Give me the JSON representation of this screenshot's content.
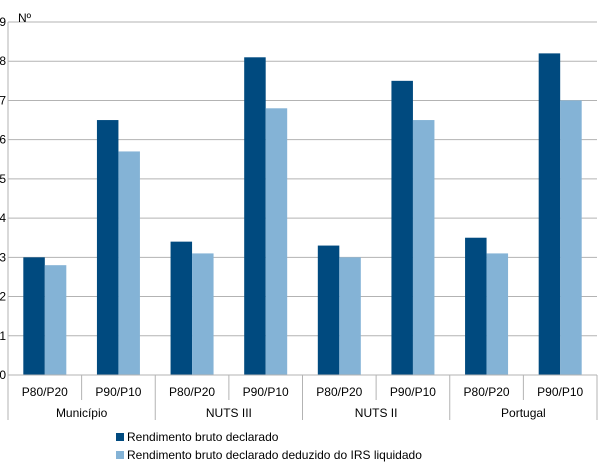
{
  "chart_data": {
    "type": "bar",
    "unit_label": "Nº",
    "ylim": [
      0,
      9
    ],
    "yticks": [
      0,
      1,
      2,
      3,
      4,
      5,
      6,
      7,
      8,
      9
    ],
    "grid": true,
    "groups": [
      {
        "label": "Município",
        "categories": [
          "P80/P20",
          "P90/P10"
        ]
      },
      {
        "label": "NUTS III",
        "categories": [
          "P80/P20",
          "P90/P10"
        ]
      },
      {
        "label": "NUTS II",
        "categories": [
          "P80/P20",
          "P90/P10"
        ]
      },
      {
        "label": "Portugal",
        "categories": [
          "P80/P20",
          "P90/P10"
        ]
      }
    ],
    "series": [
      {
        "name": "Rendimento bruto declarado",
        "color": "#004a7f",
        "values": [
          3.0,
          6.5,
          3.4,
          8.1,
          3.3,
          7.5,
          3.5,
          8.2
        ]
      },
      {
        "name": "Rendimento bruto declarado deduzido do IRS liquidado",
        "color": "#84b3d6",
        "values": [
          2.8,
          5.7,
          3.1,
          6.8,
          3.0,
          6.5,
          3.1,
          7.0
        ]
      }
    ],
    "legend_position": "bottom"
  }
}
